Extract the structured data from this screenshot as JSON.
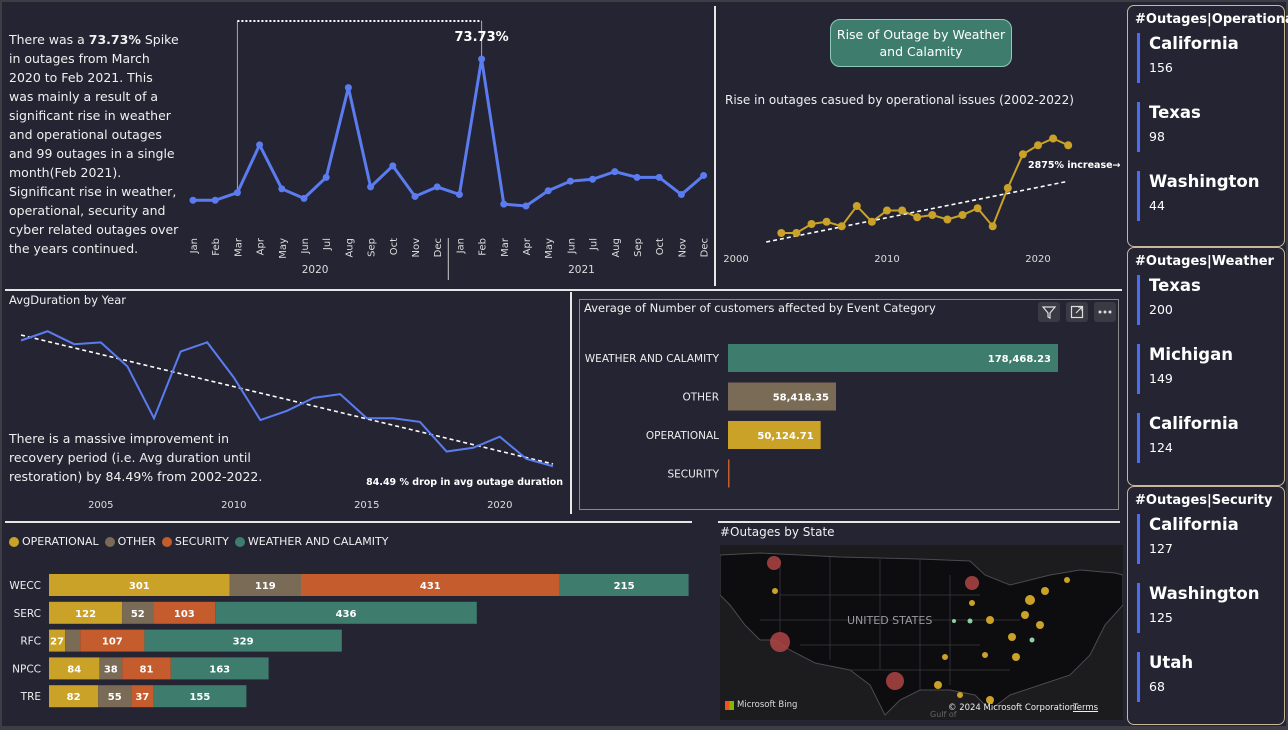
{
  "colors": {
    "blue_line": "#5b7cf0",
    "operational": "#c9a227",
    "other": "#7a6b57",
    "security": "#c45c2e",
    "weather": "#3e7d6d",
    "card_accent": "#4a6cf7"
  },
  "spike_section": {
    "text_before": "There was a ",
    "highlight": "73.73%",
    "text_after": " Spike in outages from March 2020 to Feb 2021. This was mainly a result of a significant rise in weather and operational outages and 99 outages in a single month(Feb 2021). Significant rise in weather, operational, security and cyber related outages over the years continued.",
    "peak_label": "73.73%"
  },
  "monthly_chart": {
    "months": [
      "Jan",
      "Feb",
      "Mar",
      "Apr",
      "May",
      "Jun",
      "Jul",
      "Aug",
      "Sep",
      "Oct",
      "Nov",
      "Dec",
      "Jan",
      "Feb",
      "Mar",
      "Apr",
      "May",
      "Jun",
      "Jul",
      "Aug",
      "Sep",
      "Oct",
      "Nov",
      "Dec"
    ],
    "years": [
      "2020",
      "2021"
    ]
  },
  "weather_pill": "Rise of Outage by Weather and Calamity",
  "operational_rise": {
    "title": "Rise in outages casued by operational issues (2002-2022)",
    "annotation": "2875% increase",
    "x_ticks": [
      "2000",
      "2010",
      "2020"
    ]
  },
  "avg_duration": {
    "title": "AvgDuration by Year",
    "text": "There is a massive improvement in recovery period (i.e. Avg duration until restoration) by 84.49% from 2002-2022.",
    "annotation": "84.49 % drop in avg outage duration",
    "x_ticks": [
      "2005",
      "2010",
      "2015",
      "2020"
    ]
  },
  "customers_chart": {
    "title": "Average of Number of customers affected by Event Category",
    "icons": [
      "filter-icon",
      "focus-mode-icon",
      "more-options-icon"
    ]
  },
  "stacked_chart": {
    "legend": [
      "OPERATIONAL",
      "OTHER",
      "SECURITY",
      "WEATHER AND CALAMITY"
    ]
  },
  "map": {
    "title": "#Outages by State",
    "country_label": "UNITED STATES",
    "bing_label": "Microsoft Bing",
    "copyright": "© 2024 Microsoft Corporation",
    "terms": "Terms",
    "gulf": "Gulf of"
  },
  "cards": [
    {
      "title": "#Outages|Operational",
      "items": [
        {
          "state": "California",
          "value": "156"
        },
        {
          "state": "Texas",
          "value": "98"
        },
        {
          "state": "Washington",
          "value": "44"
        }
      ]
    },
    {
      "title": "#Outages|Weather",
      "items": [
        {
          "state": "Texas",
          "value": "200"
        },
        {
          "state": "Michigan",
          "value": "149"
        },
        {
          "state": "California",
          "value": "124"
        }
      ]
    },
    {
      "title": "#Outages|Security",
      "items": [
        {
          "state": "California",
          "value": "127"
        },
        {
          "state": "Washington",
          "value": "125"
        },
        {
          "state": "Utah",
          "value": "68"
        }
      ]
    }
  ],
  "chart_data": [
    {
      "type": "line",
      "title": "",
      "x": [
        "Jan 2020",
        "Feb 2020",
        "Mar 2020",
        "Apr 2020",
        "May 2020",
        "Jun 2020",
        "Jul 2020",
        "Aug 2020",
        "Sep 2020",
        "Oct 2020",
        "Nov 2020",
        "Dec 2020",
        "Jan 2021",
        "Feb 2021",
        "Mar 2021",
        "Apr 2021",
        "May 2021",
        "Jun 2021",
        "Jul 2021",
        "Aug 2021",
        "Sep 2021",
        "Oct 2021",
        "Nov 2021",
        "Dec 2021"
      ],
      "series": [
        {
          "values": [
            25,
            25,
            29,
            54,
            31,
            26,
            37,
            84,
            32,
            43,
            27,
            32,
            28,
            99,
            23,
            22,
            30,
            35,
            36,
            40,
            37,
            37,
            28,
            38
          ]
        }
      ],
      "ylim": [
        0,
        110
      ],
      "annotations": [
        "73.73%"
      ]
    },
    {
      "type": "line",
      "title": "Rise in outages casued by operational issues (2002-2022)",
      "x": [
        2003,
        2004,
        2005,
        2006,
        2007,
        2008,
        2009,
        2010,
        2011,
        2012,
        2013,
        2014,
        2015,
        2016,
        2017,
        2018,
        2019,
        2020,
        2021,
        2022
      ],
      "series": [
        {
          "values": [
            4,
            4,
            8,
            9,
            7,
            16,
            9,
            14,
            14,
            11,
            12,
            10,
            12,
            15,
            7,
            24,
            39,
            43,
            46,
            43
          ]
        }
      ],
      "trendline": true,
      "x_ticks": [
        2000,
        2010,
        2020
      ],
      "annotations": [
        "2875% increase"
      ]
    },
    {
      "type": "line",
      "title": "AvgDuration by Year",
      "x": [
        2002,
        2003,
        2004,
        2005,
        2006,
        2007,
        2008,
        2009,
        2010,
        2011,
        2012,
        2013,
        2014,
        2015,
        2016,
        2017,
        2018,
        2019,
        2020,
        2021,
        2022
      ],
      "series": [
        {
          "values": [
            3500,
            3750,
            3400,
            3450,
            2800,
            1400,
            3200,
            3450,
            2500,
            1350,
            1600,
            1950,
            2050,
            1400,
            1400,
            1300,
            500,
            600,
            900,
            300,
            100
          ]
        }
      ],
      "trendline": true,
      "x_ticks": [
        2005,
        2010,
        2015,
        2020
      ],
      "annotations": [
        "84.49 % drop in avg outage duration"
      ]
    },
    {
      "type": "bar",
      "title": "Average of Number of customers affected by Event Category",
      "categories": [
        "WEATHER AND CALAMITY",
        "OTHER",
        "OPERATIONAL",
        "SECURITY"
      ],
      "values": [
        178468.23,
        58418.35,
        50124.71,
        600
      ],
      "labels": [
        "178,468.23",
        "58,418.35",
        "50,124.71",
        ""
      ],
      "orientation": "horizontal"
    },
    {
      "type": "bar",
      "stacked": true,
      "orientation": "horizontal",
      "categories": [
        "WECC",
        "SERC",
        "RFC",
        "NPCC",
        "TRE"
      ],
      "series": [
        {
          "name": "OPERATIONAL",
          "values": [
            301,
            122,
            27,
            84,
            82
          ]
        },
        {
          "name": "OTHER",
          "values": [
            119,
            52,
            25,
            38,
            55
          ]
        },
        {
          "name": "SECURITY",
          "values": [
            431,
            103,
            107,
            81,
            37
          ]
        },
        {
          "name": "WEATHER AND CALAMITY",
          "values": [
            215,
            436,
            329,
            163,
            155
          ]
        }
      ],
      "hidden_labels": [
        [
          false,
          false,
          false,
          false,
          false
        ],
        [
          false,
          false,
          true,
          false,
          false
        ],
        [
          false,
          false,
          false,
          false,
          false
        ],
        [
          false,
          false,
          false,
          false,
          false
        ]
      ]
    }
  ]
}
